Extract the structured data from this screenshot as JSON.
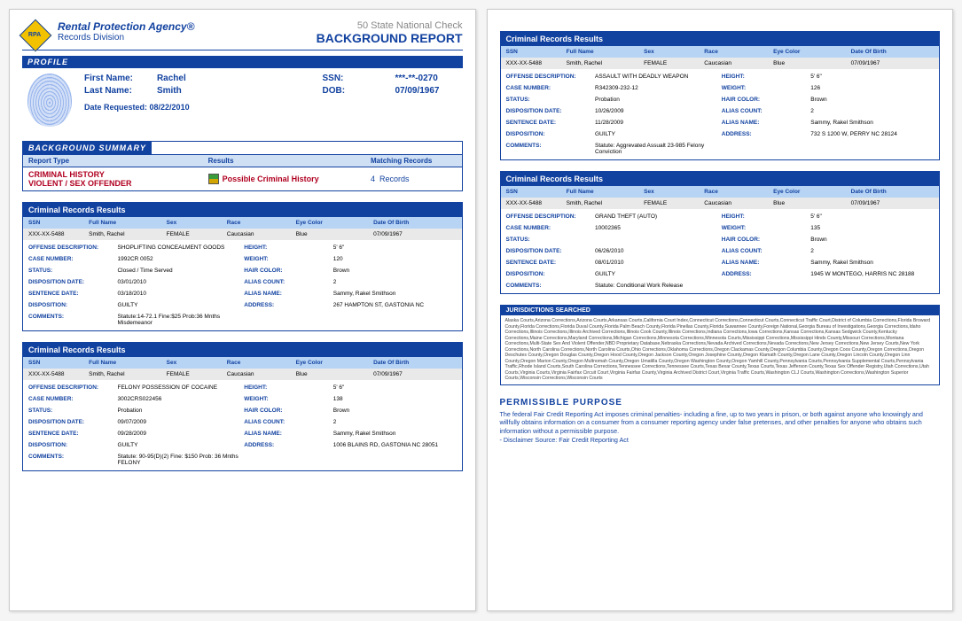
{
  "header": {
    "agency": "Rental Protection Agency®",
    "division": "Records Division",
    "natcheck": "50 State National Check",
    "bgreport": "BACKGROUND REPORT"
  },
  "profile": {
    "title": "PROFILE",
    "first_name_label": "First Name:",
    "first_name": "Rachel",
    "last_name_label": "Last Name:",
    "last_name": "Smith",
    "ssn_label": "SSN:",
    "ssn": "***-**-0270",
    "dob_label": "DOB:",
    "dob": "07/09/1967",
    "date_req_label": "Date Requested:",
    "date_req": "08/22/2010"
  },
  "summary": {
    "title": "BACKGROUND  SUMMARY",
    "h1": "Report Type",
    "h2": "Results",
    "h3": "Matching Records",
    "type1": "CRIMINAL  HISTORY",
    "type2": "VIOLENT / SEX OFFENDER",
    "result": "Possible Criminal History",
    "count": "4",
    "count_label": "Records"
  },
  "rec_header": {
    "title": "Criminal Records Results",
    "ssn": "SSN",
    "name": "Full Name",
    "sex": "Sex",
    "race": "Race",
    "eye": "Eye Color",
    "dob": "Date Of Birth"
  },
  "labels": {
    "offense": "OFFENSE DESCRIPTION:",
    "height": "HEIGHT:",
    "case": "CASE NUMBER:",
    "weight": "WEIGHT:",
    "status": "STATUS:",
    "hair": "HAIR COLOR:",
    "dispdate": "DISPOSITION DATE:",
    "alias_count": "ALIAS COUNT:",
    "sentdate": "SENTENCE DATE:",
    "alias_name": "ALIAS NAME:",
    "disp": "DISPOSITION:",
    "addr": "ADDRESS:",
    "comments": "COMMENTS:"
  },
  "common": {
    "ssn": "XXX-XX-5488",
    "name": "Smith, Rachel",
    "sex": "FEMALE",
    "race": "Caucasian",
    "eye": "Blue",
    "dob": "07/09/1967",
    "height": "5' 6\"",
    "hair": "Brown",
    "alias_count": "2",
    "alias_name": "Sammy, Rakel Smithson"
  },
  "records": [
    {
      "offense": "SHOPLIFTING CONCEALMENT GOODS",
      "case": "1992CR 0052",
      "weight": "120",
      "status": "Closed / Time Served",
      "dispdate": "03/01/2010",
      "sentdate": "03/18/2010",
      "disp": "GUILTY",
      "addr": "267 HAMPTON ST, GASTONIA NC",
      "comments": "Statute:14-72.1 Fine:$25 Prob:36 Mnths Misdemeanor"
    },
    {
      "offense": "FELONY POSSESSION OF COCAINE",
      "case": "3002CRS022456",
      "weight": "138",
      "status": "Probation",
      "dispdate": "09/07/2009",
      "sentdate": "09/28/2009",
      "disp": "GUILTY",
      "addr": "1006 BLAINS RD, GASTONIA NC 28051",
      "comments": "Statute: 90-95(D)(2) Fine: $150 Prob: 36 Mnths FELONY"
    },
    {
      "offense": "ASSAULT WITH DEADLY WEAPON",
      "case": "R342309-232-12",
      "weight": "126",
      "status": "Probation",
      "dispdate": "10/26/2009",
      "sentdate": "11/28/2009",
      "disp": "GUILTY",
      "addr": "732 S 1200 W, PERRY NC 28124",
      "comments": "Statute: Aggrevated Assualt 23-985 Felony Conviction"
    },
    {
      "offense": "GRAND THEFT (AUTO)",
      "case": "10002365",
      "weight": "135",
      "status": "",
      "dispdate": "06/26/2010",
      "sentdate": "08/01/2010",
      "disp": "GUILTY",
      "addr": "1945 W MONTEGO, HARRIS NC 28188",
      "comments": "Statute: Conditional Work Release"
    }
  ],
  "jurisdictions": {
    "title": "JURISDICTIONS SEARCHED",
    "body": "Alaska Courts,Arizona Corrections,Arizona Courts,Arkansas Courts,California Court Index,Connecticut Corrections,Connecticut Courts,Connecticut Traffic Court,District of Columbia Corrections,Florida Broward County,Florida Corrections,Florida Duval County,Florida Palm Beach County,Florida Pinellas County,Florida Suwannee County,Foreign National,Georgia Bureau of Investigations,Georgia Corrections,Idaho Corrections,Illinois Corrections,Illinois Archived Corrections,Illinois Cook County,Illinois Corrections,Indiana Corrections,Iowa Corrections,Kansas Corrections,Kansas Sedgwick County,Kentucky Corrections,Maine Corrections,Maryland Corrections,Michigan Corrections,Minnesota Corrections,Minnesota Courts,Mississippi Corrections,Mississippi Hinds County,Missouri Corrections,Montana Corrections,Multi-State Sex And Violent Offender,NBD Proprietary Database,Nebraska Corrections,Nevada Archived Corrections,Nevada Corrections,New Jersey Corrections,New Jersey Courts,New York Corrections,North Carolina Corrections,North Carolina Courts,Ohio Corrections,Oklahoma Corrections,Oregon Clackamas County,Oregon Columbia County,Oregon Coos County,Oregon Corrections,Oregon Deschutes County,Oregon Douglas County,Oregon Hood County,Oregon Jackson County,Oregon Josephine County,Oregon Klamath County,Oregon Lane County,Oregon Lincoln County,Oregon Linn County,Oregon Marion County,Oregon Multnomah County,Oregon Umatilla County,Oregon Washington County,Oregon Yamhill County,Pennsylvania Courts,Pennsylvania Supplemental Courts,Pennsylvania Traffic,Rhode Island Courts,South Carolina Corrections,Tennessee Corrections,Tennessee Courts,Texas Bexar County,Texas Courts,Texas Jefferson County,Texas Sex Offender Registry,Utah Corrections,Utah Courts,Virginia Courts,Virginia Fairfax Circuit Court,Virginia Fairfax County,Virginia Archived District Court,Virginia Traffic Courts,Washington CLJ Courts,Washington Corrections,Washington Superior Courts,Wisconsin Corrections,Wisconsin Courts"
  },
  "permissible": {
    "title": "PERMISSIBLE PURPOSE",
    "body": "The federal Fair Credit Reporting Act imposes criminal penalties- including a fine, up to two years in prison, or both against anyone who knowingly and willfully obtains information on a consumer from a consumer reporting agency under false pretenses, and other penalties for anyone who obtains such information without a permissible purpose.",
    "disclaimer": "- Disclaimer Source: Fair Credit Reporting Act"
  }
}
